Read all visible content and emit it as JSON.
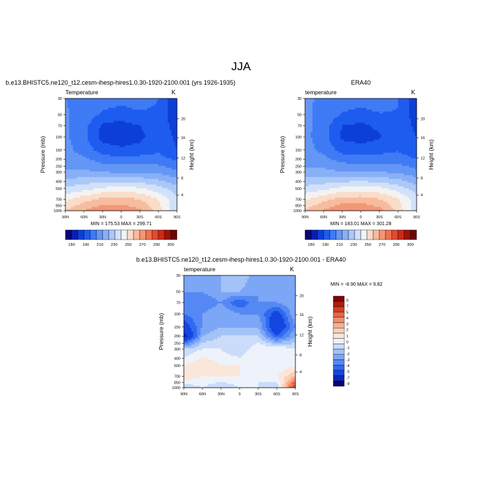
{
  "suptitle": "JJA",
  "axis_text": {
    "ylabel": "Pressure (mb)",
    "ylabel_right": "Height (km)",
    "unit": "K"
  },
  "pressure_ticks": [
    "30",
    "50",
    "70",
    "100",
    "150",
    "200",
    "250",
    "300",
    "400",
    "500",
    "700",
    "850",
    "1000"
  ],
  "pressure_values": [
    30,
    50,
    70,
    100,
    150,
    200,
    250,
    300,
    400,
    500,
    700,
    850,
    1000
  ],
  "height_ticks": [
    "20",
    "16",
    "12",
    "8",
    "4"
  ],
  "lat_ticks": [
    "90N",
    "60N",
    "30N",
    "0",
    "30S",
    "60S",
    "90S"
  ],
  "colors": {
    "abs_fill": [
      "#08087a",
      "#0a1fb0",
      "#0d3fd8",
      "#1e5cf0",
      "#3f7bf5",
      "#6496f5",
      "#89b0f7",
      "#abc8f7",
      "#d2e1fa",
      "#f3f3f3",
      "#fadcc8",
      "#f7bca0",
      "#f39774",
      "#ee7250",
      "#e44a2e",
      "#cc2a17",
      "#a01208",
      "#6d0505"
    ],
    "diff_fill": [
      "#06066e",
      "#0b25b8",
      "#1546e0",
      "#2f6af0",
      "#5688f4",
      "#7ca6f6",
      "#a3c3f7",
      "#cadcf9",
      "#eef3fb",
      "#fbe6da",
      "#f8cfb7",
      "#f5b092",
      "#f08d6c",
      "#e86546",
      "#d63c22",
      "#b2190d",
      "#800404"
    ]
  },
  "chart_data": [
    {
      "type": "heatmap",
      "title": "b.e13.BHISTC5.ne120_t12.cesm-ihesp-hires1.0.30-1920-2100.001 (yrs 1926-1935)",
      "subtitle_left": "Temperature",
      "xlabel": "",
      "ylabel": "Pressure (mb)",
      "ylabel_right": "Height (km)",
      "units": "K",
      "min_max_text": "MIN = 175.53   MAX = 299.71",
      "x": [
        -90,
        -60,
        -30,
        0,
        30,
        60,
        90
      ],
      "y": [
        30,
        50,
        70,
        100,
        150,
        200,
        300,
        500,
        700,
        1000
      ],
      "z": [
        [
          220,
          218,
          215,
          214,
          216,
          210,
          190
        ],
        [
          221,
          216,
          208,
          205,
          208,
          208,
          192
        ],
        [
          222,
          214,
          198,
          196,
          200,
          207,
          195
        ],
        [
          222,
          213,
          196,
          194,
          197,
          207,
          198
        ],
        [
          223,
          216,
          205,
          202,
          204,
          208,
          200
        ],
        [
          224,
          222,
          215,
          213,
          214,
          214,
          208
        ],
        [
          232,
          232,
          230,
          229,
          229,
          228,
          222
        ],
        [
          252,
          256,
          262,
          264,
          262,
          254,
          244
        ],
        [
          268,
          276,
          283,
          284,
          280,
          270,
          252
        ],
        [
          280,
          290,
          298,
          298,
          292,
          275,
          250
        ]
      ],
      "colorbar": {
        "levels": [
          180,
          190,
          200,
          210,
          220,
          230,
          240,
          250,
          260,
          270,
          280,
          290,
          300
        ],
        "labels": [
          "180",
          "190",
          "210",
          "230",
          "250",
          "270",
          "290",
          "300"
        ]
      }
    },
    {
      "type": "heatmap",
      "title": "ERA40",
      "subtitle_left": "temperature",
      "xlabel": "",
      "ylabel": "Pressure (mb)",
      "ylabel_right": "Height (km)",
      "units": "K",
      "min_max_text": "MIN = 183.01   MAX = 301.28",
      "x": [
        -90,
        -60,
        -30,
        0,
        30,
        60,
        90
      ],
      "y": [
        30,
        50,
        70,
        100,
        150,
        200,
        300,
        500,
        700,
        1000
      ],
      "z": [
        [
          221,
          219,
          216,
          215,
          217,
          211,
          192
        ],
        [
          222,
          217,
          209,
          206,
          209,
          209,
          194
        ],
        [
          223,
          215,
          200,
          198,
          202,
          208,
          197
        ],
        [
          223,
          214,
          198,
          196,
          199,
          208,
          200
        ],
        [
          224,
          217,
          206,
          204,
          206,
          209,
          202
        ],
        [
          225,
          223,
          216,
          214,
          215,
          215,
          210
        ],
        [
          233,
          233,
          231,
          230,
          230,
          229,
          223
        ],
        [
          253,
          257,
          263,
          265,
          263,
          255,
          245
        ],
        [
          269,
          277,
          284,
          285,
          281,
          271,
          254
        ],
        [
          281,
          291,
          299,
          300,
          294,
          277,
          252
        ]
      ],
      "colorbar": {
        "levels": [
          180,
          190,
          200,
          210,
          220,
          230,
          240,
          250,
          260,
          270,
          280,
          290,
          300
        ],
        "labels": [
          "180",
          "190",
          "210",
          "230",
          "250",
          "270",
          "290",
          "300"
        ]
      }
    },
    {
      "type": "heatmap",
      "title": "b.e13.BHISTC5.ne120_t12.cesm-ihesp-hires1.0.30-1920-2100.001 - ERA40",
      "subtitle_left": "temperature",
      "xlabel": "",
      "ylabel": "Pressure (mb)",
      "ylabel_right": "Height (km)",
      "units": "K",
      "min_max_text": "MIN =  -8.90   MAX =   9.82",
      "x": [
        -90,
        -60,
        -30,
        0,
        30,
        60,
        90
      ],
      "y": [
        30,
        50,
        70,
        100,
        150,
        200,
        300,
        500,
        700,
        1000
      ],
      "z": [
        [
          -3,
          -2,
          -2,
          -1,
          -3,
          -2,
          -3
        ],
        [
          -3,
          -3,
          -2,
          -2,
          -3,
          -3,
          -3
        ],
        [
          -3,
          -4,
          -3,
          -5,
          -3,
          -3,
          -2
        ],
        [
          -4,
          -3,
          -2,
          -3,
          -3,
          -6,
          -2
        ],
        [
          -6,
          -3,
          -2,
          -2,
          -2,
          -7,
          -3
        ],
        [
          -8,
          -2,
          -1,
          -1,
          -1,
          -5,
          -2
        ],
        [
          -1,
          0,
          0,
          -1,
          1,
          1,
          0
        ],
        [
          1,
          2,
          1,
          1,
          1,
          0,
          1
        ],
        [
          2,
          1,
          1,
          1,
          0,
          1,
          3
        ],
        [
          -1,
          0,
          -1,
          0,
          0,
          -1,
          8
        ]
      ],
      "colorbar": {
        "levels": [
          -9,
          -7,
          -5,
          -4,
          -3,
          -2,
          -1,
          0,
          1,
          2,
          3,
          4,
          5,
          7,
          9
        ],
        "labels": [
          "9",
          "7",
          "5",
          "4",
          "3",
          "2",
          "1",
          "0",
          "-1",
          "-2",
          "-3",
          "-4",
          "-5",
          "-7",
          "-9"
        ]
      }
    }
  ]
}
